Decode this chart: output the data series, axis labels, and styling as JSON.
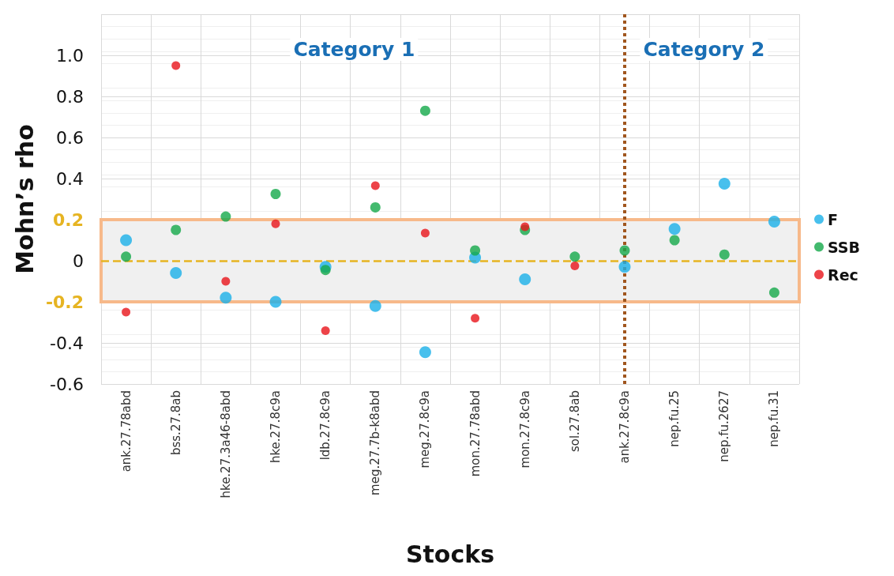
{
  "chart_data": {
    "type": "scatter",
    "xlabel": "Stocks",
    "ylabel": "Mohn’s rho",
    "categories": [
      "ank.27.78abd",
      "bss.27.8ab",
      "hke.27.3a46-8abd",
      "hke.27.8c9a",
      "ldb.27.8c9a",
      "meg.27.7b-k8abd",
      "meg.27.8c9a",
      "mon.27.78abd",
      "mon.27.8c9a",
      "sol.27.8ab",
      "ank.27.8c9a",
      "nep.fu.25",
      "nep.fu.2627",
      "nep.fu.31"
    ],
    "series": [
      {
        "name": "F",
        "color": "#1ab0e8",
        "values": [
          0.1,
          -0.06,
          -0.18,
          -0.2,
          -0.03,
          -0.22,
          -0.445,
          0.015,
          -0.09,
          null,
          -0.03,
          0.155,
          0.375,
          0.19
        ]
      },
      {
        "name": "SSB",
        "color": "#14a94a",
        "values": [
          0.02,
          0.15,
          0.215,
          0.325,
          -0.045,
          0.26,
          0.73,
          0.05,
          0.15,
          0.02,
          0.05,
          0.1,
          0.03,
          -0.155
        ]
      },
      {
        "name": "Rec",
        "color": "#e8141a",
        "values": [
          -0.25,
          0.95,
          -0.1,
          0.18,
          -0.34,
          0.365,
          0.135,
          -0.28,
          0.165,
          -0.025,
          null,
          null,
          null,
          null
        ]
      }
    ],
    "ylim": [
      -0.6,
      1.2
    ],
    "yticks": [
      -0.6,
      -0.4,
      -0.2,
      0,
      0.2,
      0.4,
      0.6,
      0.8,
      {
        "value": 1,
        "label": "1.0"
      },
      {
        "value": 1.2,
        "label": null
      }
    ],
    "ref_lines": [
      {
        "axis": "y",
        "value": 0,
        "color": "#e6b422",
        "line_style": "dashed"
      },
      {
        "axis": "x",
        "value": "ank.27.8c9a",
        "color": "#a0561e",
        "line_style": "dotted"
      }
    ],
    "bands": [
      {
        "axis": "y",
        "from": -0.2,
        "to": 0.2,
        "color": "#f0f0f0"
      }
    ],
    "annotations": [
      "Category 1",
      "Category 2"
    ],
    "grid": true,
    "legend": "right",
    "marker": "circle"
  }
}
